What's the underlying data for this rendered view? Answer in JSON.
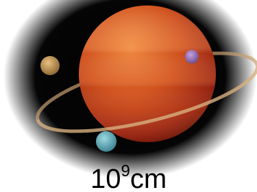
{
  "caption": {
    "base": "10",
    "exponent": "9",
    "unit": "cm"
  }
}
